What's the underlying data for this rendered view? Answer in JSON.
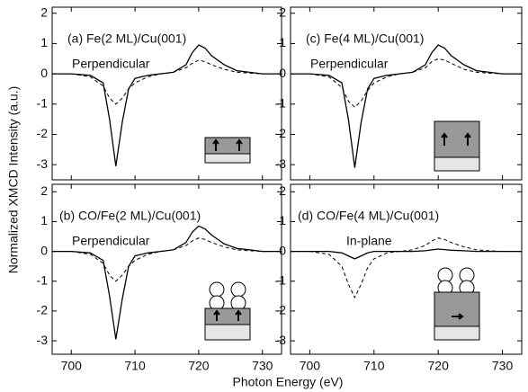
{
  "ylabel": "Normalized XMCD Intensity (a.u.)",
  "xlabel": "Photon Energy (eV)",
  "chart_data": [
    {
      "type": "line",
      "title": "(a) Fe(2 ML)/Cu(001)",
      "subtitle": "Perpendicular",
      "x": [
        697,
        700,
        703,
        705,
        706,
        707,
        708,
        709,
        710,
        712,
        714,
        716,
        718,
        719,
        720,
        721,
        722,
        724,
        726,
        728,
        730,
        733
      ],
      "series": [
        {
          "color": "#000000",
          "style": "solid",
          "values": [
            0,
            0,
            -0.05,
            -0.3,
            -1.5,
            -3.05,
            -1.6,
            -0.5,
            -0.15,
            -0.05,
            0,
            0.05,
            0.3,
            0.7,
            0.95,
            0.85,
            0.6,
            0.3,
            0.1,
            0.05,
            0,
            0
          ]
        },
        {
          "color": "#000000",
          "style": "dashed",
          "values": [
            0,
            0,
            -0.1,
            -0.4,
            -0.8,
            -1.0,
            -0.8,
            -0.5,
            -0.3,
            -0.1,
            0,
            0.05,
            0.2,
            0.35,
            0.45,
            0.4,
            0.3,
            0.15,
            0.05,
            0.02,
            0,
            0
          ]
        }
      ],
      "xlim": [
        697,
        733
      ],
      "xticks": [
        700,
        710,
        720,
        730
      ],
      "ylim": [
        -3.5,
        2.2
      ],
      "yticks": [
        -3,
        -2,
        -1,
        0,
        1,
        2
      ]
    },
    {
      "type": "line",
      "title": "(c) Fe(4 ML)/Cu(001)",
      "subtitle": "Perpendicular",
      "x": [
        697,
        700,
        703,
        705,
        706,
        707,
        708,
        709,
        710,
        712,
        714,
        716,
        718,
        719,
        720,
        721,
        722,
        724,
        726,
        728,
        730,
        733
      ],
      "series": [
        {
          "color": "#000000",
          "style": "solid",
          "values": [
            0,
            0,
            -0.05,
            -0.3,
            -1.5,
            -3.1,
            -1.6,
            -0.5,
            -0.15,
            -0.05,
            0,
            0.05,
            0.3,
            0.7,
            0.95,
            0.85,
            0.6,
            0.3,
            0.1,
            0.05,
            0,
            0
          ]
        },
        {
          "color": "#000000",
          "style": "dashed",
          "values": [
            0,
            0,
            -0.1,
            -0.45,
            -0.9,
            -1.1,
            -0.9,
            -0.55,
            -0.3,
            -0.1,
            0,
            0.05,
            0.2,
            0.4,
            0.5,
            0.45,
            0.35,
            0.15,
            0.05,
            0.02,
            0,
            0
          ]
        }
      ],
      "xlim": [
        697,
        733
      ],
      "xticks": [
        700,
        710,
        720,
        730
      ],
      "ylim": [
        -3.5,
        2.2
      ],
      "yticks": [
        -3,
        -2,
        -1,
        0,
        1,
        2
      ]
    },
    {
      "type": "line",
      "title": "(b) CO/Fe(2 ML)/Cu(001)",
      "subtitle": "Perpendicular",
      "x": [
        697,
        700,
        703,
        705,
        706,
        707,
        708,
        709,
        710,
        712,
        714,
        716,
        718,
        719,
        720,
        721,
        722,
        724,
        726,
        728,
        730,
        733
      ],
      "series": [
        {
          "color": "#000000",
          "style": "solid",
          "values": [
            0,
            0,
            -0.05,
            -0.3,
            -1.5,
            -2.95,
            -1.6,
            -0.5,
            -0.15,
            -0.05,
            0,
            0.05,
            0.3,
            0.65,
            0.85,
            0.75,
            0.55,
            0.25,
            0.1,
            0.05,
            0,
            0
          ]
        },
        {
          "color": "#000000",
          "style": "dashed",
          "values": [
            0,
            0,
            -0.1,
            -0.4,
            -0.8,
            -1.0,
            -0.8,
            -0.5,
            -0.3,
            -0.1,
            0,
            0.05,
            0.2,
            0.35,
            0.45,
            0.4,
            0.3,
            0.15,
            0.05,
            0.02,
            0,
            0
          ]
        }
      ],
      "xlim": [
        697,
        733
      ],
      "xticks": [
        700,
        710,
        720,
        730
      ],
      "ylim": [
        -3.45,
        2.25
      ],
      "yticks": [
        -3,
        -2,
        -1,
        0,
        1,
        2
      ]
    },
    {
      "type": "line",
      "title": "(d) CO/Fe(4 ML)/Cu(001)",
      "subtitle": "In-plane",
      "x": [
        697,
        700,
        703,
        705,
        706,
        707,
        708,
        709,
        710,
        712,
        714,
        716,
        718,
        719,
        720,
        721,
        722,
        724,
        726,
        728,
        730,
        733
      ],
      "series": [
        {
          "color": "#000000",
          "style": "solid",
          "values": [
            0,
            0,
            0,
            -0.05,
            -0.15,
            -0.25,
            -0.15,
            -0.05,
            0,
            0,
            0,
            0,
            0.02,
            0.05,
            0.08,
            0.06,
            0.04,
            0.02,
            0,
            0,
            0,
            0
          ]
        },
        {
          "color": "#000000",
          "style": "dashed",
          "values": [
            0,
            0,
            -0.1,
            -0.5,
            -1.1,
            -1.55,
            -1.1,
            -0.55,
            -0.25,
            -0.05,
            0,
            0.05,
            0.2,
            0.35,
            0.45,
            0.4,
            0.3,
            0.15,
            0.05,
            0.02,
            0,
            0
          ]
        }
      ],
      "xlim": [
        697,
        733
      ],
      "xticks": [
        700,
        710,
        720,
        730
      ],
      "ylim": [
        -3.45,
        2.25
      ],
      "yticks": [
        -3,
        -2,
        -1,
        0,
        1,
        2
      ]
    }
  ]
}
